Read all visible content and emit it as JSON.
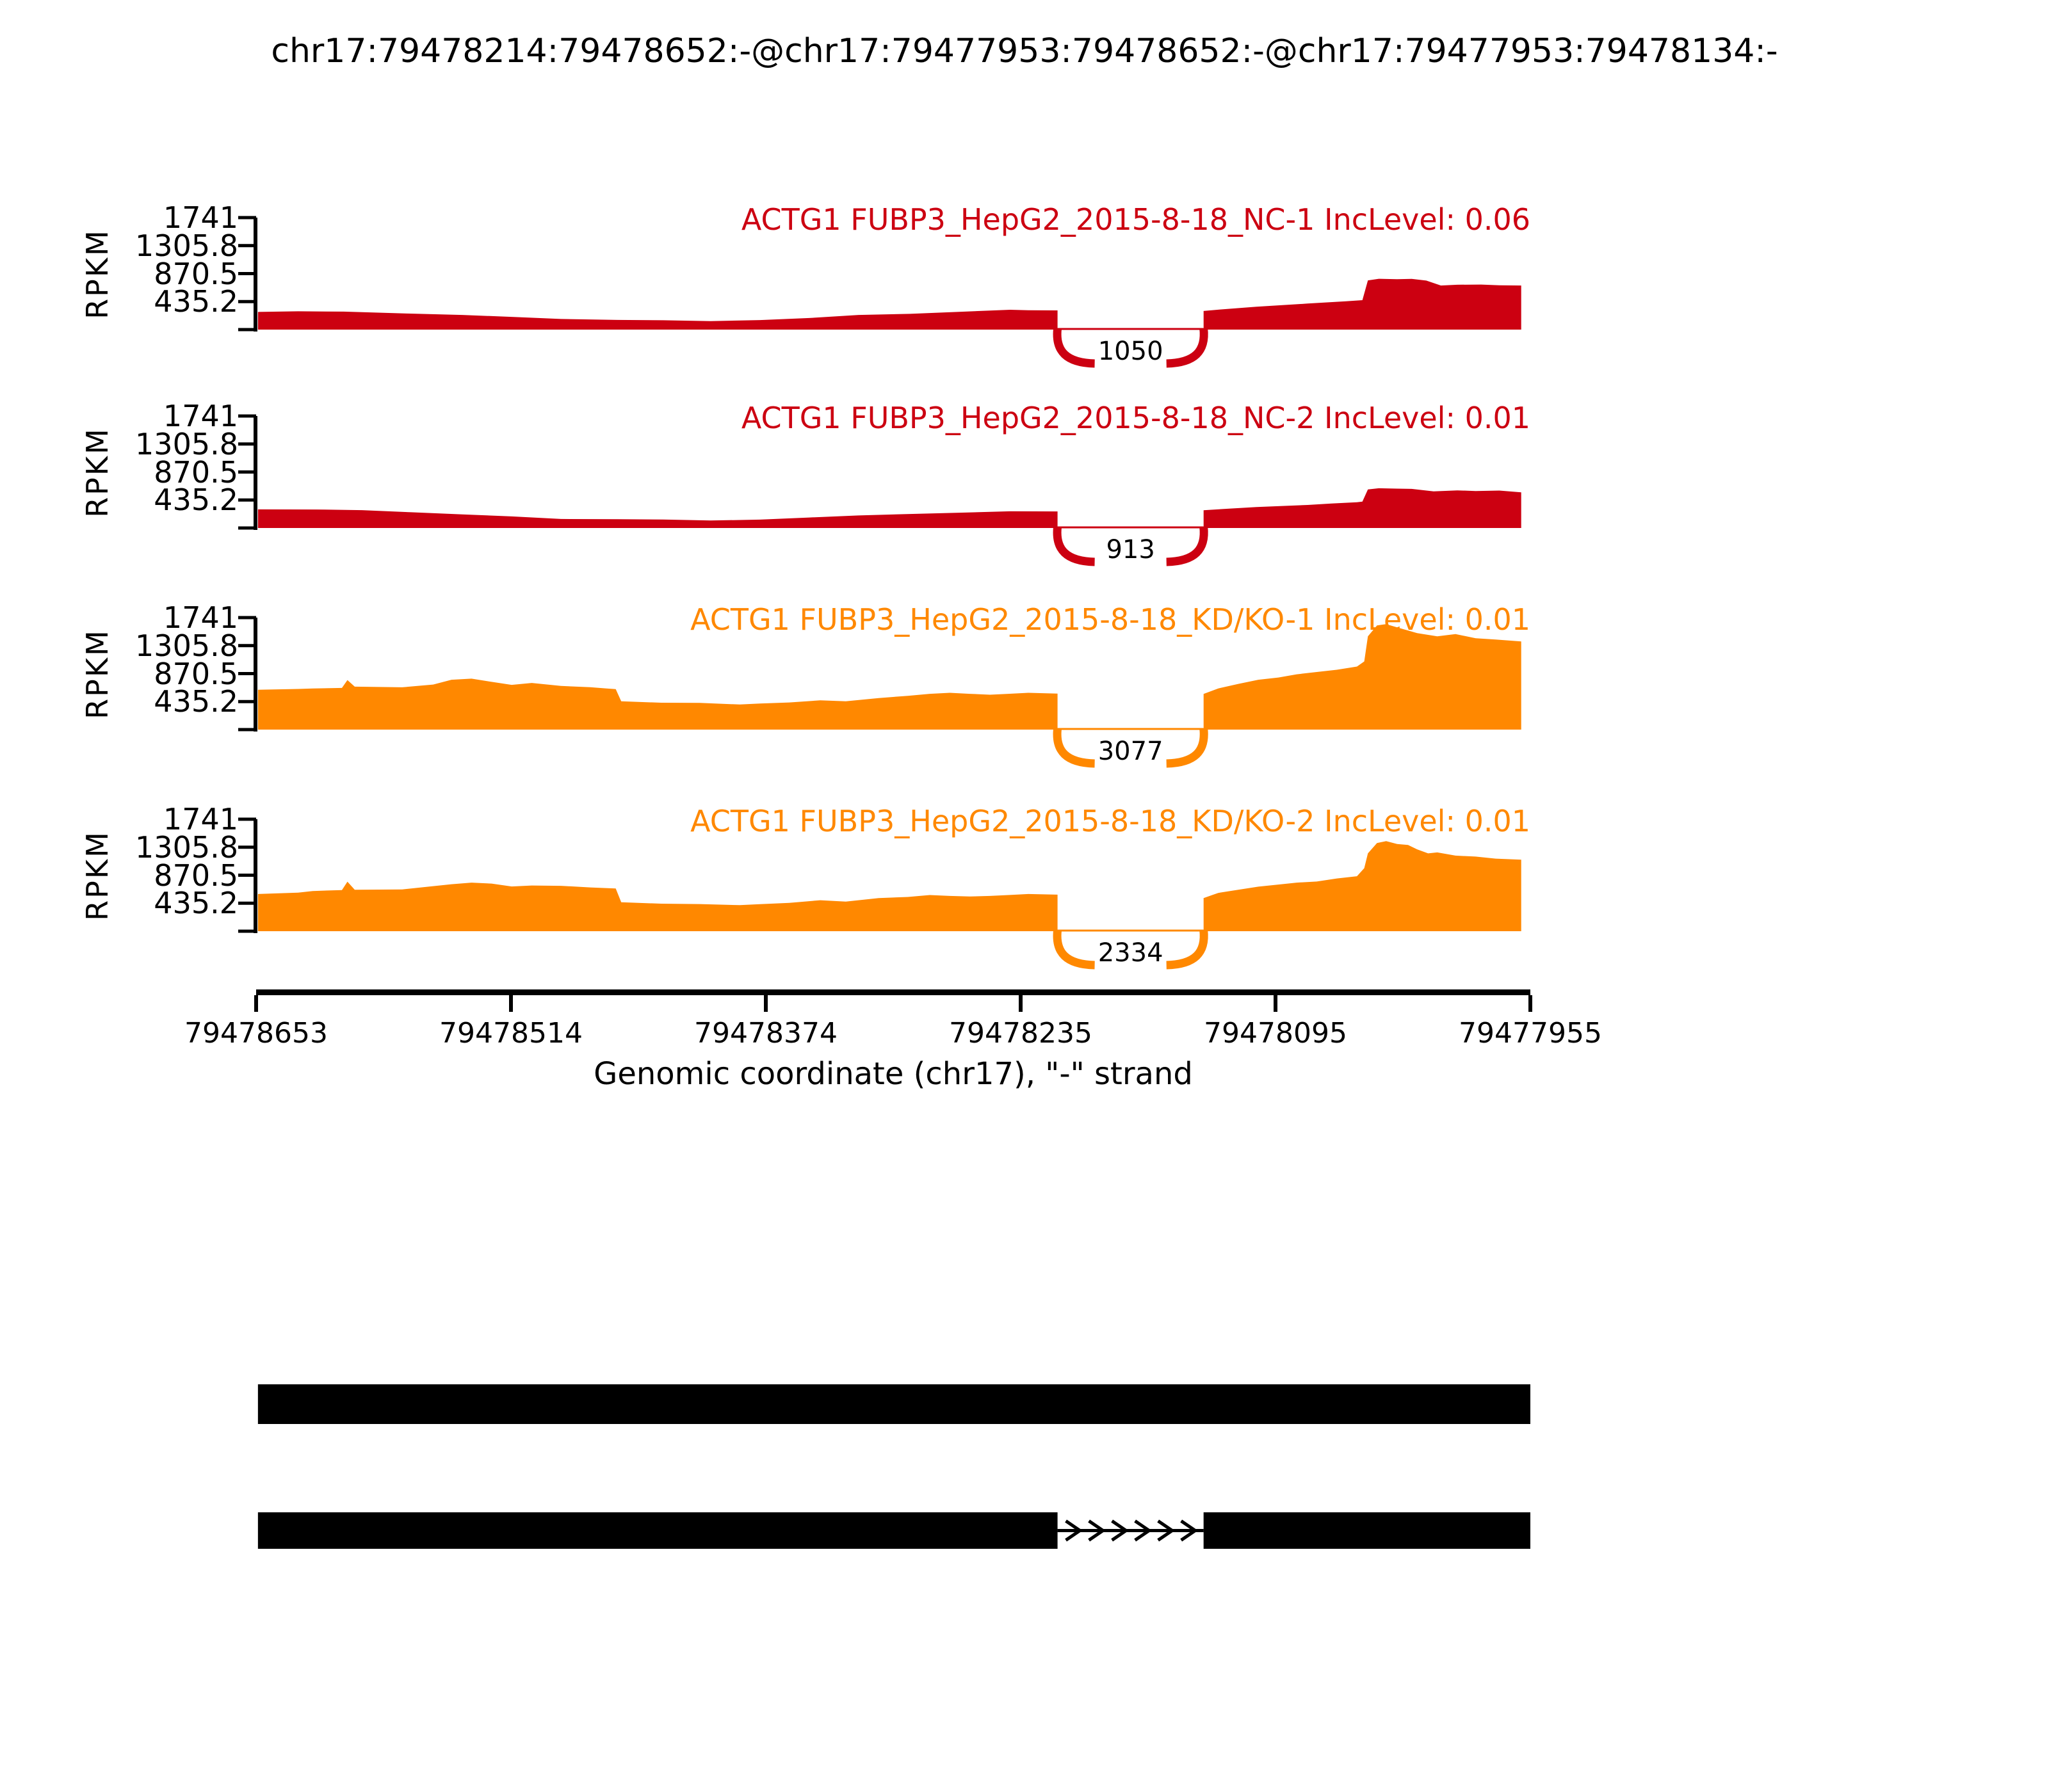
{
  "title": "chr17:79478214:79478652:-@chr17:79477953:79478652:-@chr17:79477953:79478134:-",
  "colors": {
    "nc_red": "#CC0011",
    "kdko_orange": "#FF8800",
    "ink": "#000000",
    "background": "#FFFFFF"
  },
  "y_axis": {
    "label": "RPKM",
    "tick_labels": [
      "435.2",
      "870.5",
      "1305.8",
      "1741"
    ]
  },
  "x_axis": {
    "label": "Genomic coordinate (chr17), \"-\" strand",
    "ticks": [
      "79478653",
      "79478514",
      "79478374",
      "79478235",
      "79478095",
      "79477955"
    ]
  },
  "chart_data": {
    "type": "area",
    "subtype": "sashimi-coverage",
    "x_range": [
      79478653,
      79477955
    ],
    "y_max": 1741,
    "y_ticks": [
      435.2,
      870.5,
      1305.8,
      1741
    ],
    "grid": false,
    "junction_span": [
      79478214,
      79478134
    ],
    "tracks": [
      {
        "label": "ACTG1 FUBP3_HepG2_2015-8-18_NC-1 IncLevel: 0.06",
        "gene": "ACTG1",
        "sample": "FUBP3_HepG2_2015-8-18_NC-1",
        "inc_level": 0.06,
        "color": "#CC0011",
        "junction_reads": 1050,
        "coverage_left": [
          [
            79478652,
            275
          ],
          [
            79478630,
            285
          ],
          [
            79478605,
            280
          ],
          [
            79478570,
            250
          ],
          [
            79478540,
            228
          ],
          [
            79478513,
            198
          ],
          [
            79478486,
            165
          ],
          [
            79478455,
            150
          ],
          [
            79478430,
            145
          ],
          [
            79478404,
            132
          ],
          [
            79478377,
            148
          ],
          [
            79478350,
            180
          ],
          [
            79478323,
            228
          ],
          [
            79478295,
            245
          ],
          [
            79478268,
            277
          ],
          [
            79478240,
            308
          ],
          [
            79478230,
            300
          ],
          [
            79478214,
            298
          ]
        ],
        "coverage_right": [
          [
            79478134,
            290
          ],
          [
            79478125,
            312
          ],
          [
            79478105,
            355
          ],
          [
            79478077,
            405
          ],
          [
            79478056,
            440
          ],
          [
            79478047,
            458
          ],
          [
            79478044,
            765
          ],
          [
            79478038,
            790
          ],
          [
            79478028,
            783
          ],
          [
            79478020,
            788
          ],
          [
            79478012,
            762
          ],
          [
            79478004,
            685
          ],
          [
            79477995,
            697
          ],
          [
            79477982,
            700
          ],
          [
            79477972,
            688
          ],
          [
            79477960,
            685
          ]
        ]
      },
      {
        "label": "ACTG1 FUBP3_HepG2_2015-8-18_NC-2 IncLevel: 0.01",
        "gene": "ACTG1",
        "sample": "FUBP3_HepG2_2015-8-18_NC-2",
        "inc_level": 0.01,
        "color": "#CC0011",
        "junction_reads": 913,
        "coverage_left": [
          [
            79478652,
            290
          ],
          [
            79478620,
            288
          ],
          [
            79478595,
            278
          ],
          [
            79478568,
            245
          ],
          [
            79478540,
            212
          ],
          [
            79478513,
            180
          ],
          [
            79478486,
            140
          ],
          [
            79478455,
            136
          ],
          [
            79478430,
            132
          ],
          [
            79478404,
            116
          ],
          [
            79478377,
            130
          ],
          [
            79478350,
            163
          ],
          [
            79478323,
            195
          ],
          [
            79478295,
            218
          ],
          [
            79478268,
            238
          ],
          [
            79478240,
            260
          ],
          [
            79478214,
            258
          ]
        ],
        "coverage_right": [
          [
            79478134,
            277
          ],
          [
            79478120,
            300
          ],
          [
            79478105,
            326
          ],
          [
            79478077,
            358
          ],
          [
            79478064,
            381
          ],
          [
            79478050,
            400
          ],
          [
            79478047,
            410
          ],
          [
            79478044,
            600
          ],
          [
            79478038,
            618
          ],
          [
            79478028,
            612
          ],
          [
            79478020,
            608
          ],
          [
            79478008,
            570
          ],
          [
            79477995,
            585
          ],
          [
            79477985,
            575
          ],
          [
            79477972,
            582
          ],
          [
            79477960,
            555
          ]
        ]
      },
      {
        "label": "ACTG1 FUBP3_HepG2_2015-8-18_KD/KO-1 IncLevel: 0.01",
        "gene": "ACTG1",
        "sample": "FUBP3_HepG2_2015-8-18_KD/KO-1",
        "inc_level": 0.01,
        "color": "#FF8800",
        "junction_reads": 3077,
        "coverage_left": [
          [
            79478652,
            620
          ],
          [
            79478630,
            632
          ],
          [
            79478622,
            640
          ],
          [
            79478606,
            648
          ],
          [
            79478603,
            770
          ],
          [
            79478599,
            668
          ],
          [
            79478573,
            658
          ],
          [
            79478556,
            700
          ],
          [
            79478546,
            775
          ],
          [
            79478535,
            792
          ],
          [
            79478524,
            742
          ],
          [
            79478513,
            695
          ],
          [
            79478502,
            725
          ],
          [
            79478486,
            678
          ],
          [
            79478470,
            660
          ],
          [
            79478461,
            640
          ],
          [
            79478456,
            630
          ],
          [
            79478453,
            440
          ],
          [
            79478431,
            418
          ],
          [
            79478410,
            415
          ],
          [
            79478388,
            390
          ],
          [
            79478377,
            405
          ],
          [
            79478361,
            422
          ],
          [
            79478344,
            455
          ],
          [
            79478330,
            440
          ],
          [
            79478312,
            490
          ],
          [
            79478296,
            525
          ],
          [
            79478284,
            556
          ],
          [
            79478273,
            572
          ],
          [
            79478262,
            556
          ],
          [
            79478251,
            542
          ],
          [
            79478241,
            556
          ],
          [
            79478230,
            572
          ],
          [
            79478214,
            560
          ]
        ],
        "coverage_right": [
          [
            79478134,
            555
          ],
          [
            79478126,
            640
          ],
          [
            79478115,
            710
          ],
          [
            79478104,
            775
          ],
          [
            79478093,
            810
          ],
          [
            79478083,
            860
          ],
          [
            79478072,
            895
          ],
          [
            79478061,
            930
          ],
          [
            79478050,
            980
          ],
          [
            79478046,
            1060
          ],
          [
            79478044,
            1450
          ],
          [
            79478039,
            1620
          ],
          [
            79478034,
            1640
          ],
          [
            79478028,
            1590
          ],
          [
            79478017,
            1500
          ],
          [
            79478006,
            1450
          ],
          [
            79477996,
            1485
          ],
          [
            79477985,
            1420
          ],
          [
            79477974,
            1400
          ],
          [
            79477960,
            1370
          ]
        ]
      },
      {
        "label": "ACTG1 FUBP3_HepG2_2015-8-18_KD/KO-2 IncLevel: 0.01",
        "gene": "ACTG1",
        "sample": "FUBP3_HepG2_2015-8-18_KD/KO-2",
        "inc_level": 0.01,
        "color": "#FF8800",
        "junction_reads": 2334,
        "coverage_left": [
          [
            79478652,
            578
          ],
          [
            79478630,
            600
          ],
          [
            79478622,
            625
          ],
          [
            79478606,
            640
          ],
          [
            79478603,
            770
          ],
          [
            79478599,
            645
          ],
          [
            79478573,
            650
          ],
          [
            79478556,
            700
          ],
          [
            79478546,
            730
          ],
          [
            79478535,
            755
          ],
          [
            79478524,
            740
          ],
          [
            79478513,
            695
          ],
          [
            79478502,
            710
          ],
          [
            79478486,
            705
          ],
          [
            79478470,
            680
          ],
          [
            79478456,
            665
          ],
          [
            79478453,
            450
          ],
          [
            79478431,
            428
          ],
          [
            79478410,
            422
          ],
          [
            79478388,
            405
          ],
          [
            79478377,
            420
          ],
          [
            79478361,
            440
          ],
          [
            79478344,
            482
          ],
          [
            79478330,
            460
          ],
          [
            79478312,
            515
          ],
          [
            79478296,
            532
          ],
          [
            79478284,
            562
          ],
          [
            79478273,
            548
          ],
          [
            79478262,
            540
          ],
          [
            79478251,
            548
          ],
          [
            79478241,
            562
          ],
          [
            79478230,
            578
          ],
          [
            79478214,
            568
          ]
        ],
        "coverage_right": [
          [
            79478134,
            515
          ],
          [
            79478126,
            595
          ],
          [
            79478115,
            645
          ],
          [
            79478104,
            692
          ],
          [
            79478093,
            725
          ],
          [
            79478083,
            755
          ],
          [
            79478072,
            772
          ],
          [
            79478061,
            820
          ],
          [
            79478050,
            855
          ],
          [
            79478046,
            980
          ],
          [
            79478044,
            1210
          ],
          [
            79478039,
            1370
          ],
          [
            79478034,
            1400
          ],
          [
            79478028,
            1355
          ],
          [
            79478022,
            1340
          ],
          [
            79478017,
            1272
          ],
          [
            79478011,
            1210
          ],
          [
            79478006,
            1225
          ],
          [
            79477996,
            1175
          ],
          [
            79477985,
            1160
          ],
          [
            79477974,
            1128
          ],
          [
            79477960,
            1112
          ]
        ]
      }
    ],
    "gene_model": {
      "rows": [
        {
          "exons": [
            [
              79478652,
              79477953
            ]
          ]
        },
        {
          "exons": [
            [
              79478652,
              79478214
            ],
            [
              79478134,
              79477953
            ]
          ],
          "intron": [
            79478214,
            79478134
          ],
          "arrow_direction": "right",
          "arrow_count": 6
        }
      ]
    }
  }
}
